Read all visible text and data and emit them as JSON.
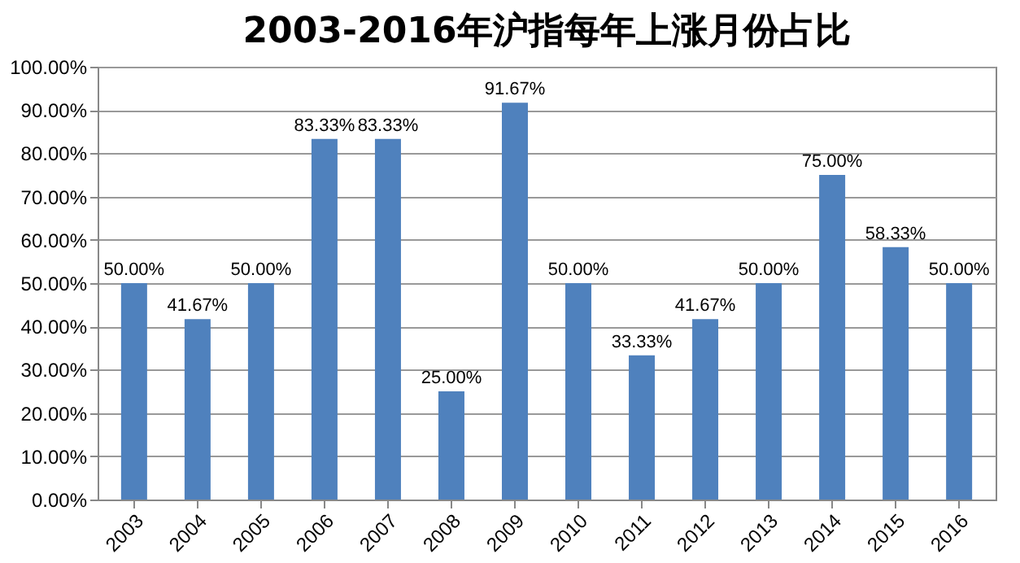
{
  "chart_data": {
    "type": "bar",
    "title": "2003-2016年沪指每年上涨月份占比",
    "categories": [
      "2003",
      "2004",
      "2005",
      "2006",
      "2007",
      "2008",
      "2009",
      "2010",
      "2011",
      "2012",
      "2013",
      "2014",
      "2015",
      "2016"
    ],
    "values": [
      50,
      41.67,
      50,
      83.33,
      83.33,
      25,
      91.67,
      50,
      33.33,
      41.67,
      50,
      75,
      58.33,
      50
    ],
    "value_labels": [
      "50.00%",
      "41.67%",
      "50.00%",
      "83.33%",
      "83.33%",
      "25.00%",
      "91.67%",
      "50.00%",
      "33.33%",
      "41.67%",
      "50.00%",
      "75.00%",
      "58.33%",
      "50.00%"
    ],
    "color": "#4f81bd",
    "ylim": [
      0,
      100
    ],
    "yticks": [
      {
        "value": 0,
        "label": "0.00%"
      },
      {
        "value": 10,
        "label": "10.00%"
      },
      {
        "value": 20,
        "label": "20.00%"
      },
      {
        "value": 30,
        "label": "30.00%"
      },
      {
        "value": 40,
        "label": "40.00%"
      },
      {
        "value": 50,
        "label": "50.00%"
      },
      {
        "value": 60,
        "label": "60.00%"
      },
      {
        "value": 70,
        "label": "70.00%"
      },
      {
        "value": 80,
        "label": "80.00%"
      },
      {
        "value": 90,
        "label": "90.00%"
      },
      {
        "value": 100,
        "label": "100.00%"
      }
    ],
    "grid": "y"
  }
}
